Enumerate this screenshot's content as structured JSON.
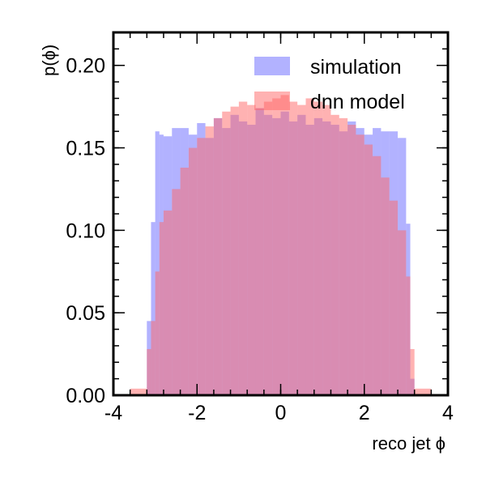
{
  "chart_data": {
    "type": "histogram",
    "xlabel": "reco jet ϕ",
    "ylabel": "p(ϕ)",
    "xlim": [
      -4,
      4
    ],
    "ylim": [
      0,
      0.22
    ],
    "x_ticks": [
      "-4",
      "-2",
      "0",
      "2",
      "4"
    ],
    "y_ticks": [
      "0.00",
      "0.05",
      "0.10",
      "0.15",
      "0.20"
    ],
    "x_tick_values": [
      -4,
      -2,
      0,
      2,
      4
    ],
    "y_tick_values": [
      0,
      0.05,
      0.1,
      0.15,
      0.2
    ],
    "legend_position": "top-right",
    "grid": false,
    "bin_edges": [
      -3.6,
      -3.2,
      -3.1,
      -3.0,
      -2.9,
      -2.8,
      -2.6,
      -2.4,
      -2.2,
      -2.0,
      -1.8,
      -1.6,
      -1.4,
      -1.2,
      -1.0,
      -0.8,
      -0.6,
      -0.4,
      -0.2,
      0.0,
      0.2,
      0.4,
      0.6,
      0.8,
      1.0,
      1.2,
      1.4,
      1.6,
      1.8,
      2.0,
      2.2,
      2.4,
      2.6,
      2.8,
      3.0,
      3.1,
      3.2,
      3.6
    ],
    "series": [
      {
        "name": "simulation",
        "color": "#6666ff",
        "values": [
          0.0,
          0.045,
          0.105,
          0.16,
          0.158,
          0.157,
          0.162,
          0.162,
          0.158,
          0.165,
          0.156,
          0.168,
          0.162,
          0.17,
          0.166,
          0.164,
          0.174,
          0.17,
          0.168,
          0.172,
          0.166,
          0.17,
          0.164,
          0.168,
          0.166,
          0.164,
          0.16,
          0.166,
          0.162,
          0.158,
          0.162,
          0.16,
          0.16,
          0.156,
          0.104,
          0.01,
          0.0
        ]
      },
      {
        "name": "dnn model",
        "color": "#ff6666",
        "values": [
          0.004,
          0.028,
          0.045,
          0.075,
          0.105,
          0.112,
          0.125,
          0.138,
          0.15,
          0.156,
          0.163,
          0.168,
          0.172,
          0.175,
          0.178,
          0.176,
          0.174,
          0.178,
          0.18,
          0.182,
          0.178,
          0.176,
          0.18,
          0.178,
          0.176,
          0.17,
          0.168,
          0.164,
          0.158,
          0.152,
          0.145,
          0.132,
          0.118,
          0.1,
          0.072,
          0.028,
          0.004
        ]
      }
    ]
  }
}
